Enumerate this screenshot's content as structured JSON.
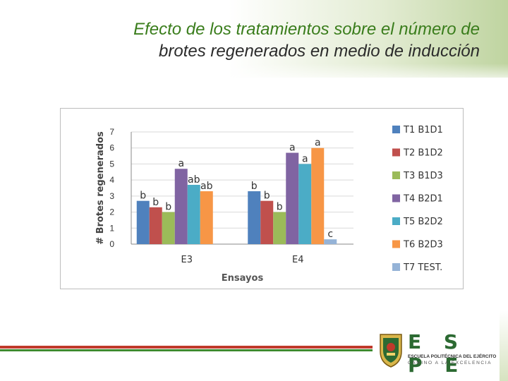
{
  "slide": {
    "title_line1": "Efecto de los tratamientos sobre el número de",
    "title_line2": "brotes regenerados en medio de inducción",
    "colors": {
      "title_green": "#3a7d1c",
      "stripe_red": "#c0392b",
      "stripe_green": "#3d8b2f"
    }
  },
  "logo": {
    "letters": "E S P E",
    "name": "ESCUELA POLITÉCNICA DEL EJÉRCITO",
    "motto": "CAMINO A LA EXCELENCIA"
  },
  "chart_data": {
    "type": "bar",
    "title": "",
    "xlabel": "Ensayos",
    "ylabel": "# Brotes regenerados",
    "ylim": [
      0,
      7
    ],
    "yticks": [
      "0",
      "1",
      "2",
      "3",
      "4",
      "5",
      "6",
      "7"
    ],
    "grid": true,
    "legend_position": "right",
    "categories": [
      "E3",
      "E4"
    ],
    "series": [
      {
        "name": "T1 B1D1",
        "color": "#4f81bd",
        "values": [
          2.7,
          3.3
        ],
        "labels": [
          "b",
          "b"
        ]
      },
      {
        "name": "T2 B1D2",
        "color": "#c0504d",
        "values": [
          2.3,
          2.7
        ],
        "labels": [
          "b",
          "b"
        ]
      },
      {
        "name": "T3 B1D3",
        "color": "#9bbb59",
        "values": [
          2.0,
          2.0
        ],
        "labels": [
          "b",
          "b"
        ]
      },
      {
        "name": "T4 B2D1",
        "color": "#8064a2",
        "values": [
          4.7,
          5.7
        ],
        "labels": [
          "a",
          "a"
        ]
      },
      {
        "name": "T5 B2D2",
        "color": "#4bacc6",
        "values": [
          3.7,
          5.0
        ],
        "labels": [
          "ab",
          "a"
        ]
      },
      {
        "name": "T6 B2D3",
        "color": "#f79646",
        "values": [
          3.3,
          6.0
        ],
        "labels": [
          "ab",
          "a"
        ]
      },
      {
        "name": "T7 TEST.",
        "color": "#95b3d7",
        "values": [
          null,
          0.3
        ],
        "labels": [
          "",
          "c"
        ]
      }
    ]
  }
}
